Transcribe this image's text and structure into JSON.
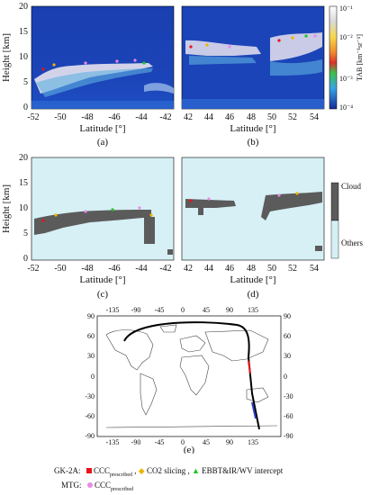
{
  "panels": {
    "a": {
      "label": "(a)",
      "xlabel": "Latitude [°]",
      "ylabel": "Height [km]",
      "xticks": [
        "-52",
        "-50",
        "-48",
        "-46",
        "-44",
        "-42"
      ],
      "yticks": [
        "0",
        "5",
        "10",
        "15",
        "20"
      ]
    },
    "b": {
      "label": "(b)",
      "xlabel": "Latitude [°]",
      "xticks": [
        "42",
        "44",
        "46",
        "48",
        "50",
        "52",
        "54"
      ],
      "yticks": [
        "0",
        "5",
        "10",
        "15",
        "20"
      ]
    },
    "c": {
      "label": "(c)",
      "xlabel": "Latitude [°]",
      "ylabel": "Height [km]",
      "xticks": [
        "-52",
        "-50",
        "-48",
        "-46",
        "-44",
        "-42"
      ],
      "yticks": [
        "0",
        "5",
        "10",
        "15",
        "20"
      ]
    },
    "d": {
      "label": "(d)",
      "xlabel": "Latitude [°]",
      "xticks": [
        "42",
        "44",
        "46",
        "48",
        "50",
        "52",
        "54"
      ],
      "yticks": [
        "0",
        "5",
        "10",
        "15",
        "20"
      ]
    },
    "e": {
      "label": "(e)",
      "lon_ticks": [
        "-135",
        "-90",
        "-45",
        "0",
        "45",
        "90",
        "135"
      ],
      "lat_ticks": [
        "90",
        "60",
        "30",
        "0",
        "-30",
        "-60",
        "-90"
      ]
    }
  },
  "colorbar": {
    "title": "TAB [km⁻¹sr⁻¹]",
    "ticks": [
      "10⁻¹",
      "10⁻²",
      "10⁻³",
      "10⁻⁴"
    ]
  },
  "mask_legend": {
    "cloud": "Cloud",
    "others": "Others"
  },
  "legend": {
    "gk2a_label": "GK-2A:",
    "mtg_label": "MTG:",
    "ccc": "CCC",
    "prescribed": "prescribed",
    "co2": "CO2 slicing",
    "ebbt": "EBBT&IR/WV intercept",
    "separator": ","
  },
  "colors": {
    "ccc": "#e8121c",
    "co2": "#f0b400",
    "ebbt": "#22c322",
    "mtg": "#e989e8",
    "cloud": "#5b5b5b",
    "others": "#d6f0f5",
    "track": "#000000"
  }
}
